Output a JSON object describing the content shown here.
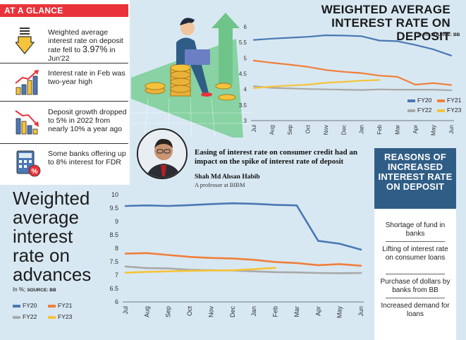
{
  "banner": {
    "label": "AT A GLANCE"
  },
  "facts": [
    {
      "text": "Weighted average interest rate on deposit rate fell to ",
      "highlight": "3.97%",
      "tail": " in Jun'22",
      "icon": "down-arrow-coins-icon"
    },
    {
      "text": "Interest rate in Feb was two-year high",
      "icon": "rising-bar-chart-icon"
    },
    {
      "text": "Deposit growth dropped to 5% in 2022 from nearly 10% a year ago",
      "icon": "falling-bar-chart-icon"
    },
    {
      "text": "Some banks offering up to 8% interest for FDR",
      "icon": "calculator-percent-icon"
    }
  ],
  "quote": {
    "text": "Easing of interest rate on consumer credit had an impact on the spike of interest rate of deposit",
    "name": "Shah Md Ahsan Habib",
    "role": "A professor at BIBM"
  },
  "reasons": {
    "title": "REASONS OF INCREASED INTEREST RATE ON DEPOSIT",
    "items": [
      "Shortage of fund in banks",
      "Lifting of interest rate on consumer loans",
      "Purchase of dollars by banks from BB",
      "Increased demand for loans"
    ]
  },
  "colors": {
    "FY20": "#4a78b5",
    "FY21": "#f07f3a",
    "FY22": "#a8a8a8",
    "FY23": "#f5c33b"
  },
  "chart_data": [
    {
      "type": "line",
      "title": "WEIGHTED AVERAGE INTEREST RATE ON DEPOSIT",
      "unit_label": "In %;",
      "source": "SOURCE: BB",
      "categories": [
        "Jul",
        "Aug",
        "Sep",
        "Oct",
        "Nov",
        "Dec",
        "Jan",
        "Feb",
        "Mar",
        "Apr",
        "May",
        "Jun"
      ],
      "ylim": [
        3,
        6
      ],
      "yticks": [
        "3",
        "3.5",
        "4",
        "4.5",
        "5",
        "5.5",
        "6"
      ],
      "series": [
        {
          "name": "FY20",
          "values": [
            5.58,
            5.62,
            5.65,
            5.68,
            5.73,
            5.72,
            5.7,
            5.56,
            5.54,
            5.42,
            5.28,
            5.08
          ]
        },
        {
          "name": "FY21",
          "values": [
            4.92,
            4.85,
            4.79,
            4.72,
            4.62,
            4.56,
            4.52,
            4.44,
            4.4,
            4.15,
            4.2,
            4.14
          ]
        },
        {
          "name": "FY22",
          "values": [
            4.1,
            4.05,
            4.03,
            4.01,
            4.0,
            3.99,
            3.98,
            4.0,
            3.99,
            3.99,
            3.99,
            3.97
          ]
        },
        {
          "name": "FY23",
          "values": [
            4.04,
            4.09,
            4.12,
            4.15,
            4.21,
            4.24,
            4.28,
            4.3,
            null,
            null,
            null,
            null
          ]
        }
      ]
    },
    {
      "type": "line",
      "title": "Weighted average interest rate on advances",
      "unit_label": "In %;",
      "source": "SOURCE: BB",
      "categories": [
        "Jul",
        "Aug",
        "Sep",
        "Oct",
        "Nov",
        "Dec",
        "Jan",
        "Feb",
        "Mar",
        "Apr",
        "May",
        "Jun"
      ],
      "ylim": [
        6,
        10
      ],
      "yticks": [
        "6",
        "6.5",
        "7",
        "7.5",
        "8",
        "8.5",
        "9",
        "9.5",
        "10"
      ],
      "series": [
        {
          "name": "FY20",
          "values": [
            9.58,
            9.6,
            9.58,
            9.61,
            9.65,
            9.68,
            9.66,
            9.62,
            9.6,
            8.28,
            8.17,
            7.95
          ]
        },
        {
          "name": "FY21",
          "values": [
            7.8,
            7.82,
            7.75,
            7.68,
            7.64,
            7.62,
            7.57,
            7.49,
            7.45,
            7.37,
            7.41,
            7.35
          ]
        },
        {
          "name": "FY22",
          "values": [
            7.32,
            7.26,
            7.25,
            7.2,
            7.18,
            7.17,
            7.14,
            7.11,
            7.1,
            7.08,
            7.07,
            7.08
          ]
        },
        {
          "name": "FY23",
          "values": [
            7.09,
            7.12,
            7.14,
            7.16,
            7.17,
            7.18,
            7.22,
            7.27,
            null,
            null,
            null,
            null
          ]
        }
      ]
    }
  ]
}
